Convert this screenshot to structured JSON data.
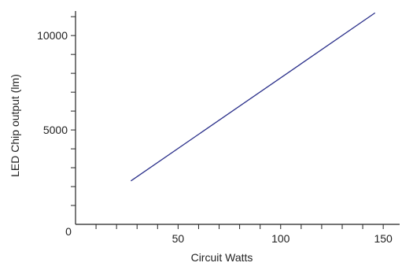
{
  "chart_data": {
    "type": "line",
    "title": "",
    "xlabel": "Circuit Watts",
    "ylabel": "LED Chip output (lm)",
    "xlim": [
      0,
      158
    ],
    "ylim": [
      0,
      11300
    ],
    "x_ticks": [
      {
        "value": 0,
        "label": "0"
      },
      {
        "value": 50,
        "label": "50"
      },
      {
        "value": 100,
        "label": "100"
      },
      {
        "value": 150,
        "label": "150"
      }
    ],
    "x_minor_step": 10,
    "y_ticks": [
      {
        "value": 5000,
        "label": "5000"
      },
      {
        "value": 10000,
        "label": "10000"
      }
    ],
    "y_minor_step": 1000,
    "grid": false,
    "series": [
      {
        "color": "#2a2f8a",
        "x": [
          27,
          146
        ],
        "y": [
          2300,
          11200
        ]
      }
    ]
  }
}
